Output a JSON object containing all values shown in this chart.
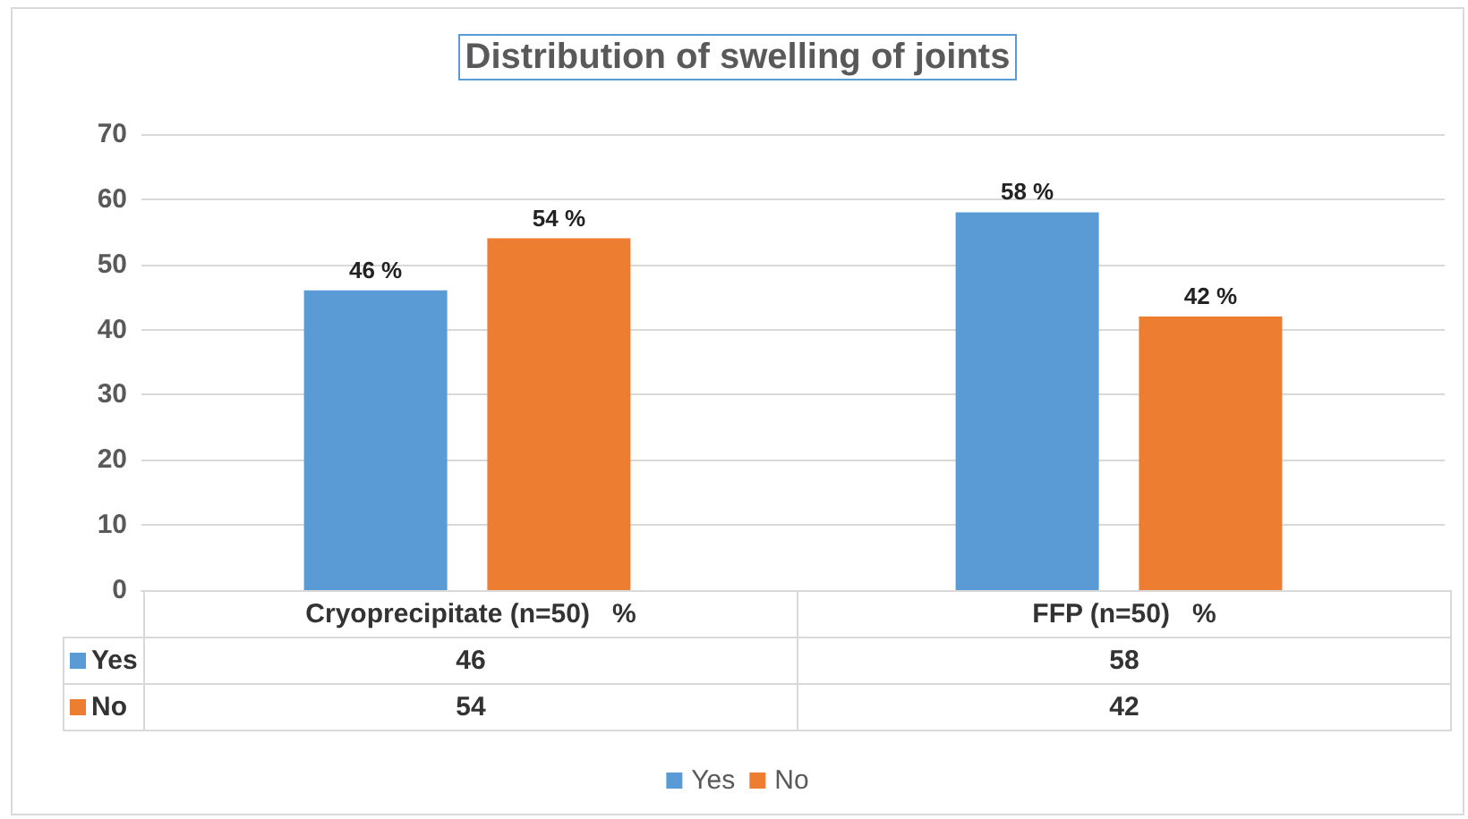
{
  "chart_data": {
    "type": "bar",
    "title": "Distribution of swelling of joints",
    "categories": [
      "Cryoprecipitate (n=50)   %",
      "FFP (n=50)   %"
    ],
    "series": [
      {
        "name": "Yes",
        "color": "#5b9bd5",
        "values": [
          46,
          58
        ],
        "value_labels": [
          "46 %",
          "58 %"
        ]
      },
      {
        "name": "No",
        "color": "#ed7d31",
        "values": [
          54,
          42
        ],
        "value_labels": [
          "54 %",
          "42 %"
        ]
      }
    ],
    "ylim": [
      0,
      70
    ],
    "yticks": [
      0,
      10,
      20,
      30,
      40,
      50,
      60,
      70
    ],
    "grid": "y",
    "legend": "bottom",
    "annotations": [
      "46",
      "58",
      "54",
      "42"
    ]
  }
}
